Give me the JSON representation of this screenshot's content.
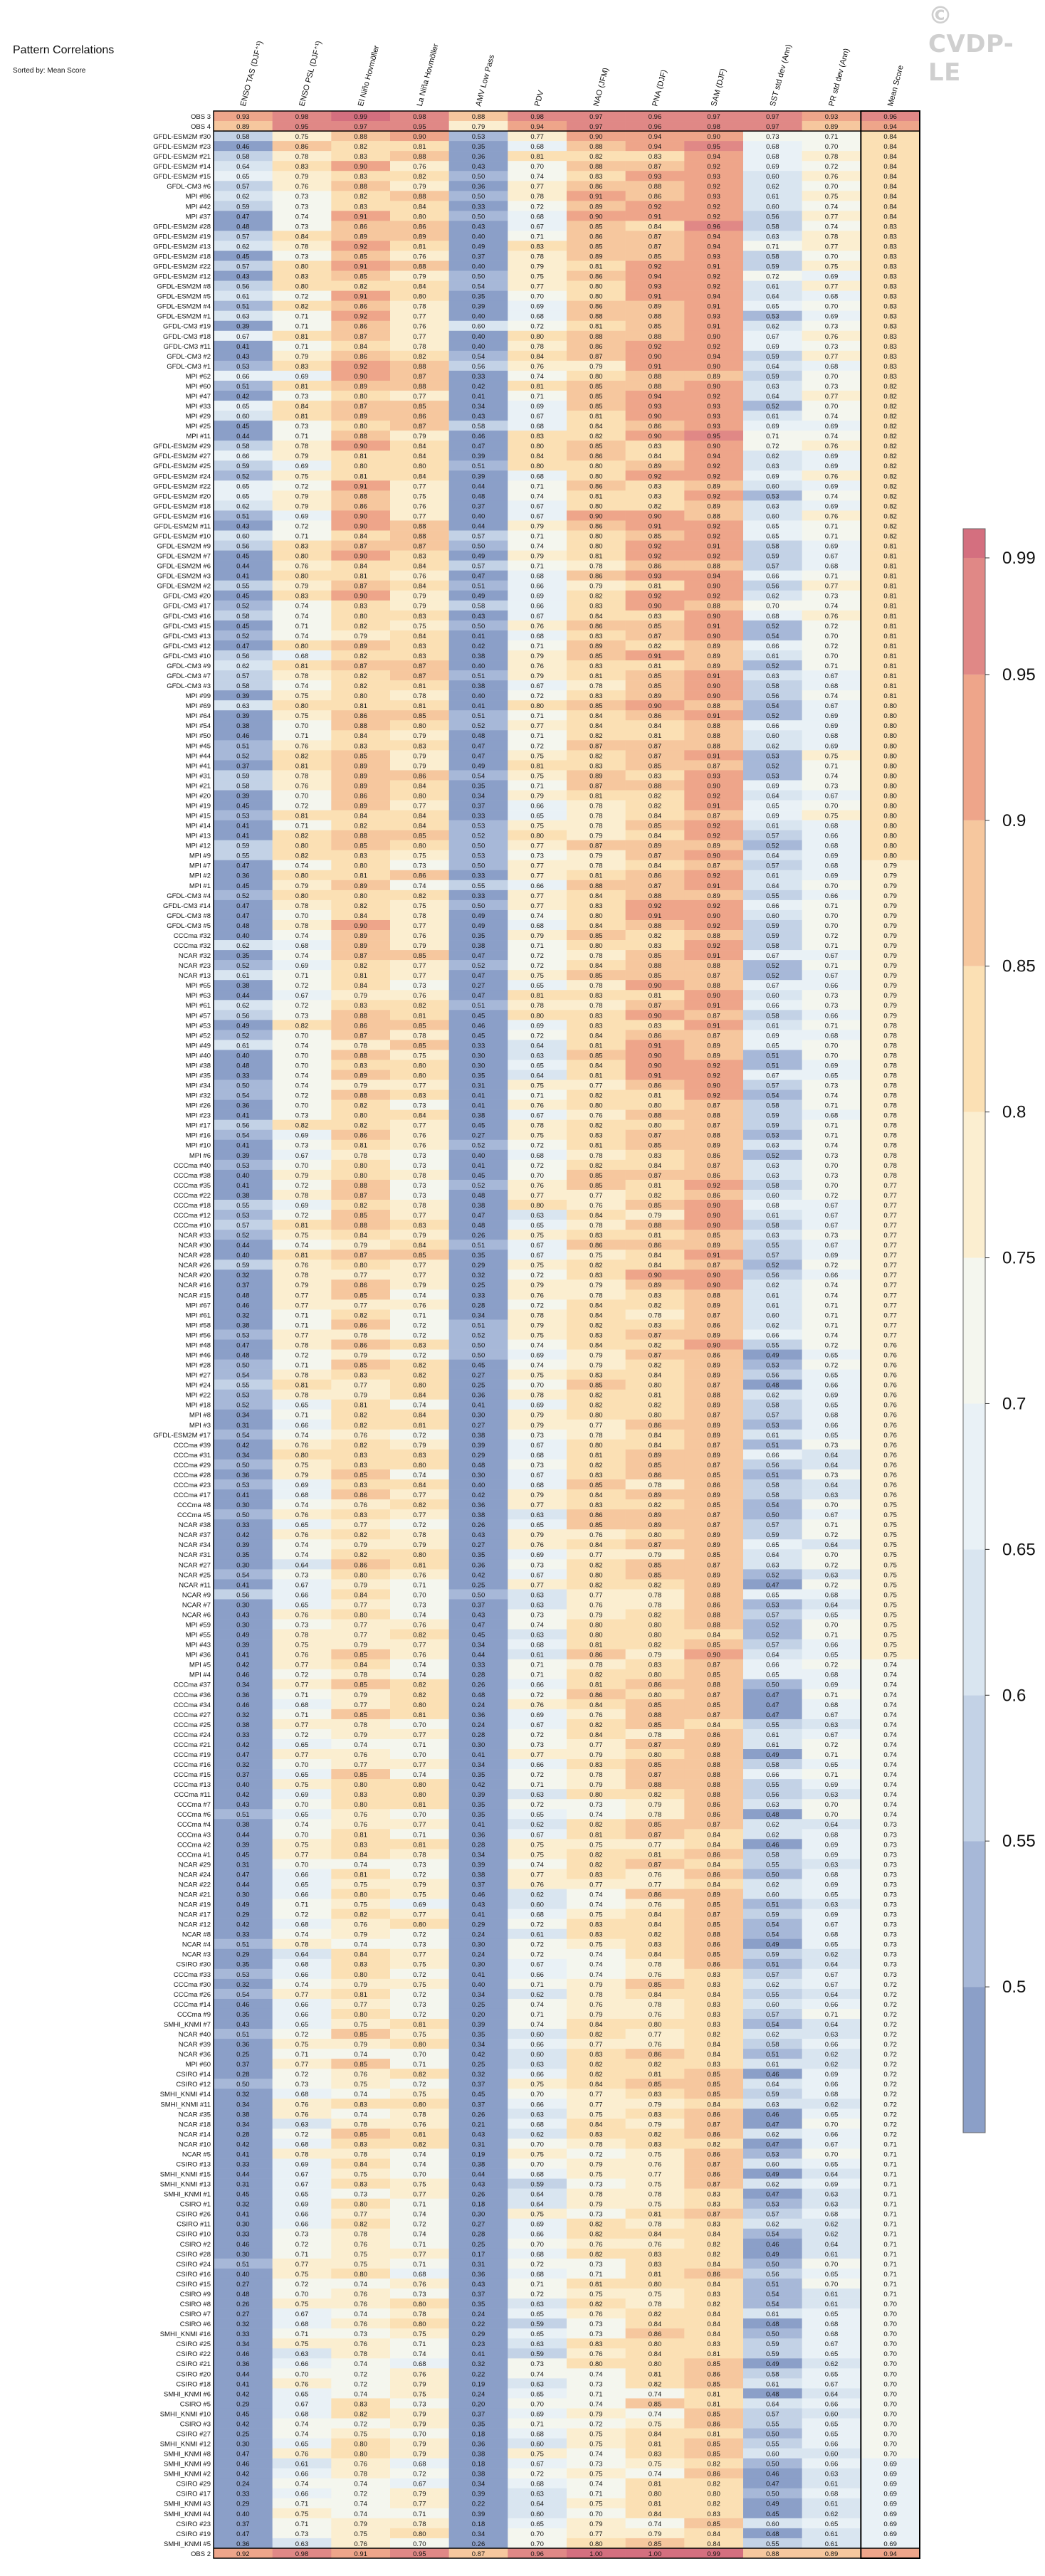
{
  "title": "Pattern Correlations",
  "subtitle": "Sorted by: Mean Score",
  "watermark": "© CVDP-LE",
  "chart_data": {
    "type": "heatmap",
    "columns": [
      "ENSO TAS (DJF⁺¹)",
      "ENSO PSL (DJF⁺¹)",
      "El Niño Hovmöller",
      "La Niña Hovmöller",
      "AMV Low Pass",
      "PDV",
      "NAO (JFM)",
      "PNA (DJF)",
      "SAM (DJF)",
      "SST std dev (Ann)",
      "PR std dev (Ann)",
      "Mean Score"
    ],
    "top_rows": [
      {
        "label": "OBS 3",
        "values": [
          0.93,
          0.98,
          0.99,
          0.98,
          0.88,
          0.98,
          0.97,
          0.96,
          0.97,
          0.97,
          0.93,
          0.96
        ]
      },
      {
        "label": "OBS 4",
        "values": [
          0.89,
          0.95,
          0.97,
          0.95,
          0.79,
          0.94,
          0.97,
          0.96,
          0.98,
          0.97,
          0.89,
          0.94
        ]
      }
    ],
    "bottom_row": {
      "label": "OBS 2",
      "values": [
        0.92,
        0.98,
        0.91,
        0.95,
        0.87,
        0.96,
        1.0,
        1.0,
        0.99,
        0.88,
        0.89,
        0.94
      ]
    },
    "row_labels": [
      "GFDL-ESM2M #30",
      "GFDL-ESM2M #23",
      "GFDL-ESM2M #21",
      "GFDL-ESM2M #14",
      "GFDL-ESM2M #15",
      "GFDL-CM3 #6",
      "MPI #86",
      "MPI #42",
      "MPI #37",
      "GFDL-ESM2M #28",
      "GFDL-ESM2M #19",
      "GFDL-ESM2M #13",
      "GFDL-ESM2M #18",
      "GFDL-ESM2M #22",
      "GFDL-ESM2M #12",
      "GFDL-ESM2M #8",
      "GFDL-ESM2M #5",
      "GFDL-ESM2M #4",
      "GFDL-ESM2M #1",
      "GFDL-CM3 #19",
      "GFDL-CM3 #18",
      "GFDL-CM3 #11",
      "GFDL-CM3 #2",
      "GFDL-CM3 #1",
      "MPI #62",
      "MPI #60",
      "MPI #47",
      "MPI #33",
      "MPI #29",
      "MPI #25",
      "MPI #11",
      "GFDL-ESM2M #29",
      "GFDL-ESM2M #27",
      "GFDL-ESM2M #25",
      "GFDL-ESM2M #24",
      "GFDL-ESM2M #22",
      "GFDL-ESM2M #20",
      "GFDL-ESM2M #18",
      "GFDL-ESM2M #16",
      "GFDL-ESM2M #11",
      "GFDL-ESM2M #10",
      "GFDL-ESM2M #9",
      "GFDL-ESM2M #7",
      "GFDL-ESM2M #6",
      "GFDL-ESM2M #3",
      "GFDL-ESM2M #2",
      "GFDL-CM3 #20",
      "GFDL-CM3 #17",
      "GFDL-CM3 #16",
      "GFDL-CM3 #15",
      "GFDL-CM3 #13",
      "GFDL-CM3 #12",
      "GFDL-CM3 #10",
      "GFDL-CM3 #9",
      "GFDL-CM3 #7",
      "GFDL-CM3 #3",
      "MPI #99",
      "MPI #69",
      "MPI #64",
      "MPI #54",
      "MPI #50",
      "MPI #45",
      "MPI #44",
      "MPI #41",
      "MPI #31",
      "MPI #21",
      "MPI #20",
      "MPI #19",
      "MPI #15",
      "MPI #14",
      "MPI #13",
      "MPI #12",
      "MPI #9",
      "MPI #7",
      "MPI #2",
      "MPI #1",
      "GFDL-CM3 #4",
      "GFDL-CM3 #14",
      "GFDL-CM3 #8",
      "GFDL-CM3 #5",
      "CCCma #32",
      "CCCma #32",
      "NCAR #32",
      "NCAR #23",
      "NCAR #13",
      "MPI #65",
      "MPI #63",
      "MPI #61",
      "MPI #57",
      "MPI #53",
      "MPI #52",
      "MPI #49",
      "MPI #40",
      "MPI #38",
      "MPI #35",
      "MPI #34",
      "MPI #32",
      "MPI #26",
      "MPI #23",
      "MPI #17",
      "MPI #16",
      "MPI #10",
      "MPI #6",
      "CCCma #40",
      "CCCma #38",
      "CCCma #35",
      "CCCma #22",
      "CCCma #18",
      "CCCma #12",
      "CCCma #10",
      "NCAR #33",
      "NCAR #30",
      "NCAR #28",
      "NCAR #26",
      "NCAR #20",
      "NCAR #16",
      "NCAR #15",
      "MPI #67",
      "MPI #61",
      "MPI #58",
      "MPI #56",
      "MPI #48",
      "MPI #46",
      "MPI #28",
      "MPI #27",
      "MPI #24",
      "MPI #22",
      "MPI #18",
      "MPI #8",
      "MPI #3",
      "GFDL-ESM2M #17",
      "CCCma #39",
      "CCCma #31",
      "CCCma #29",
      "CCCma #28",
      "CCCma #23",
      "CCCma #17",
      "CCCma #8",
      "CCCma #5",
      "NCAR #38",
      "NCAR #37",
      "NCAR #34",
      "NCAR #31",
      "NCAR #27",
      "NCAR #25",
      "NCAR #11",
      "NCAR #9",
      "NCAR #7",
      "NCAR #6",
      "MPI #59",
      "MPI #55",
      "MPI #43",
      "MPI #36",
      "MPI #5",
      "MPI #4",
      "CCCma #37",
      "CCCma #36",
      "CCCma #34",
      "CCCma #27",
      "CCCma #25",
      "CCCma #24",
      "CCCma #21",
      "CCCma #19",
      "CCCma #16",
      "CCCma #15",
      "CCCma #13",
      "CCCma #11",
      "CCCma #7",
      "CCCma #6",
      "CCCma #4",
      "CCCma #3",
      "CCCma #2",
      "CCCma #1",
      "NCAR #29",
      "NCAR #24",
      "NCAR #22",
      "NCAR #21",
      "NCAR #19",
      "NCAR #17",
      "NCAR #12",
      "NCAR #8",
      "NCAR #4",
      "NCAR #3",
      "CSIRO #30",
      "CCCma #33",
      "CCCma #30",
      "CCCma #26",
      "CCCma #14",
      "CCCma #9",
      "SMHI_KNMI #7",
      "NCAR #40",
      "NCAR #39",
      "NCAR #36",
      "MPI #60",
      "CSIRO #14",
      "CSIRO #12",
      "SMHI_KNMI #14",
      "SMHI_KNMI #11",
      "NCAR #35",
      "NCAR #18",
      "NCAR #14",
      "NCAR #10",
      "NCAR #5",
      "CSIRO #13",
      "SMHI_KNMI #15",
      "SMHI_KNMI #13",
      "SMHI_KNMI #1",
      "CSIRO #1",
      "CSIRO #26",
      "CSIRO #11",
      "CSIRO #10",
      "CSIRO #2",
      "CSIRO #28",
      "CSIRO #24",
      "CSIRO #16",
      "CSIRO #15",
      "CSIRO #9",
      "CSIRO #8",
      "CSIRO #7",
      "CSIRO #6",
      "SMHI_KNMI #16",
      "CSIRO #25",
      "CSIRO #22",
      "CSIRO #21",
      "CSIRO #20",
      "CSIRO #18",
      "SMHI_KNMI #6",
      "CSIRO #5",
      "SMHI_KNMI #10",
      "CSIRO #3",
      "CSIRO #27",
      "SMHI_KNMI #12",
      "SMHI_KNMI #8",
      "SMHI_KNMI #9",
      "SMHI_KNMI #2",
      "CSIRO #29",
      "CSIRO #17",
      "SMHI_KNMI #3",
      "SMHI_KNMI #4",
      "CSIRO #23",
      "CSIRO #19",
      "SMHI_KNMI #5"
    ],
    "model_rows_seed": 7,
    "mean_score_range": [
      0.69,
      0.84
    ],
    "colorbar": {
      "boundaries": [
        0.45,
        0.5,
        0.55,
        0.6,
        0.65,
        0.7,
        0.75,
        0.8,
        0.85,
        0.9,
        0.95,
        0.99,
        1.0
      ],
      "tick_labels": [
        "0.5",
        "0.55",
        "0.6",
        "0.65",
        "0.7",
        "0.75",
        "0.8",
        "0.85",
        "0.9",
        "0.95",
        "0.99"
      ],
      "colors": [
        "#8b9fc8",
        "#a7b8d8",
        "#c3d2e6",
        "#d9e5f0",
        "#e9f1f6",
        "#f4f6ee",
        "#fbeed0",
        "#fbe0b4",
        "#f6c79e",
        "#eea58a",
        "#e08886",
        "#d46f7f"
      ]
    }
  }
}
